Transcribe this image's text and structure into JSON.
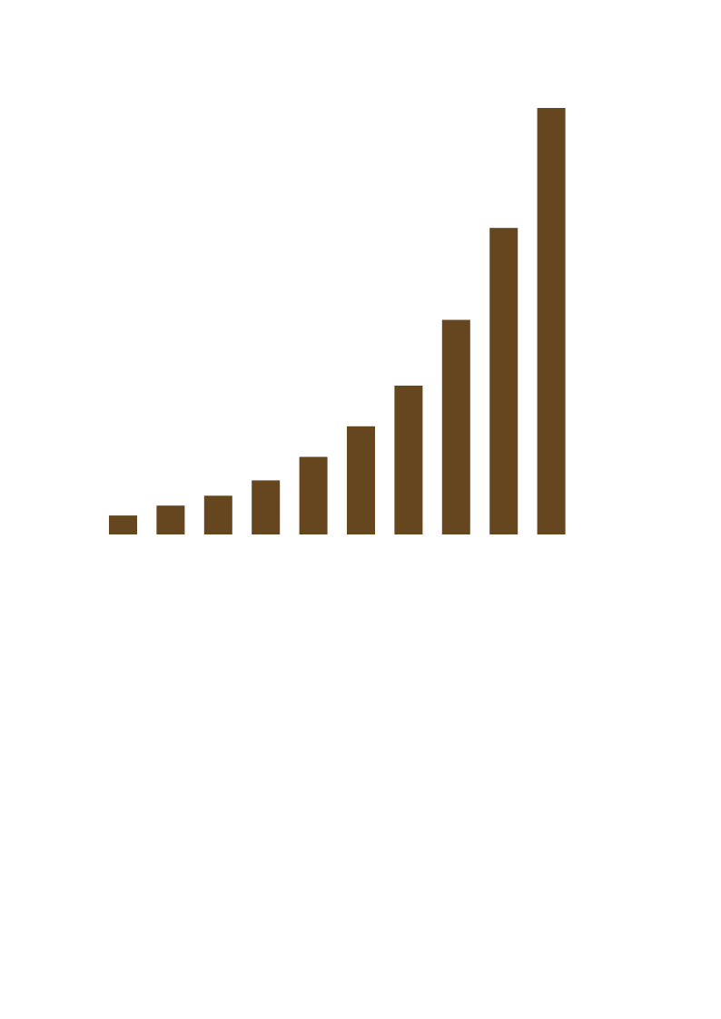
{
  "chart_data": {
    "type": "bar",
    "categories": [
      "",
      "",
      "",
      "",
      "",
      "",
      "",
      "",
      "",
      ""
    ],
    "values": [
      2.1,
      3.2,
      4.3,
      6.0,
      8.6,
      12.0,
      16.5,
      23.8,
      34.0,
      47.3
    ],
    "title": "",
    "xlabel": "",
    "ylabel": "",
    "ylim": [
      0,
      47.3
    ],
    "grid": false,
    "legend": "none",
    "bar_color": "#65461f"
  }
}
